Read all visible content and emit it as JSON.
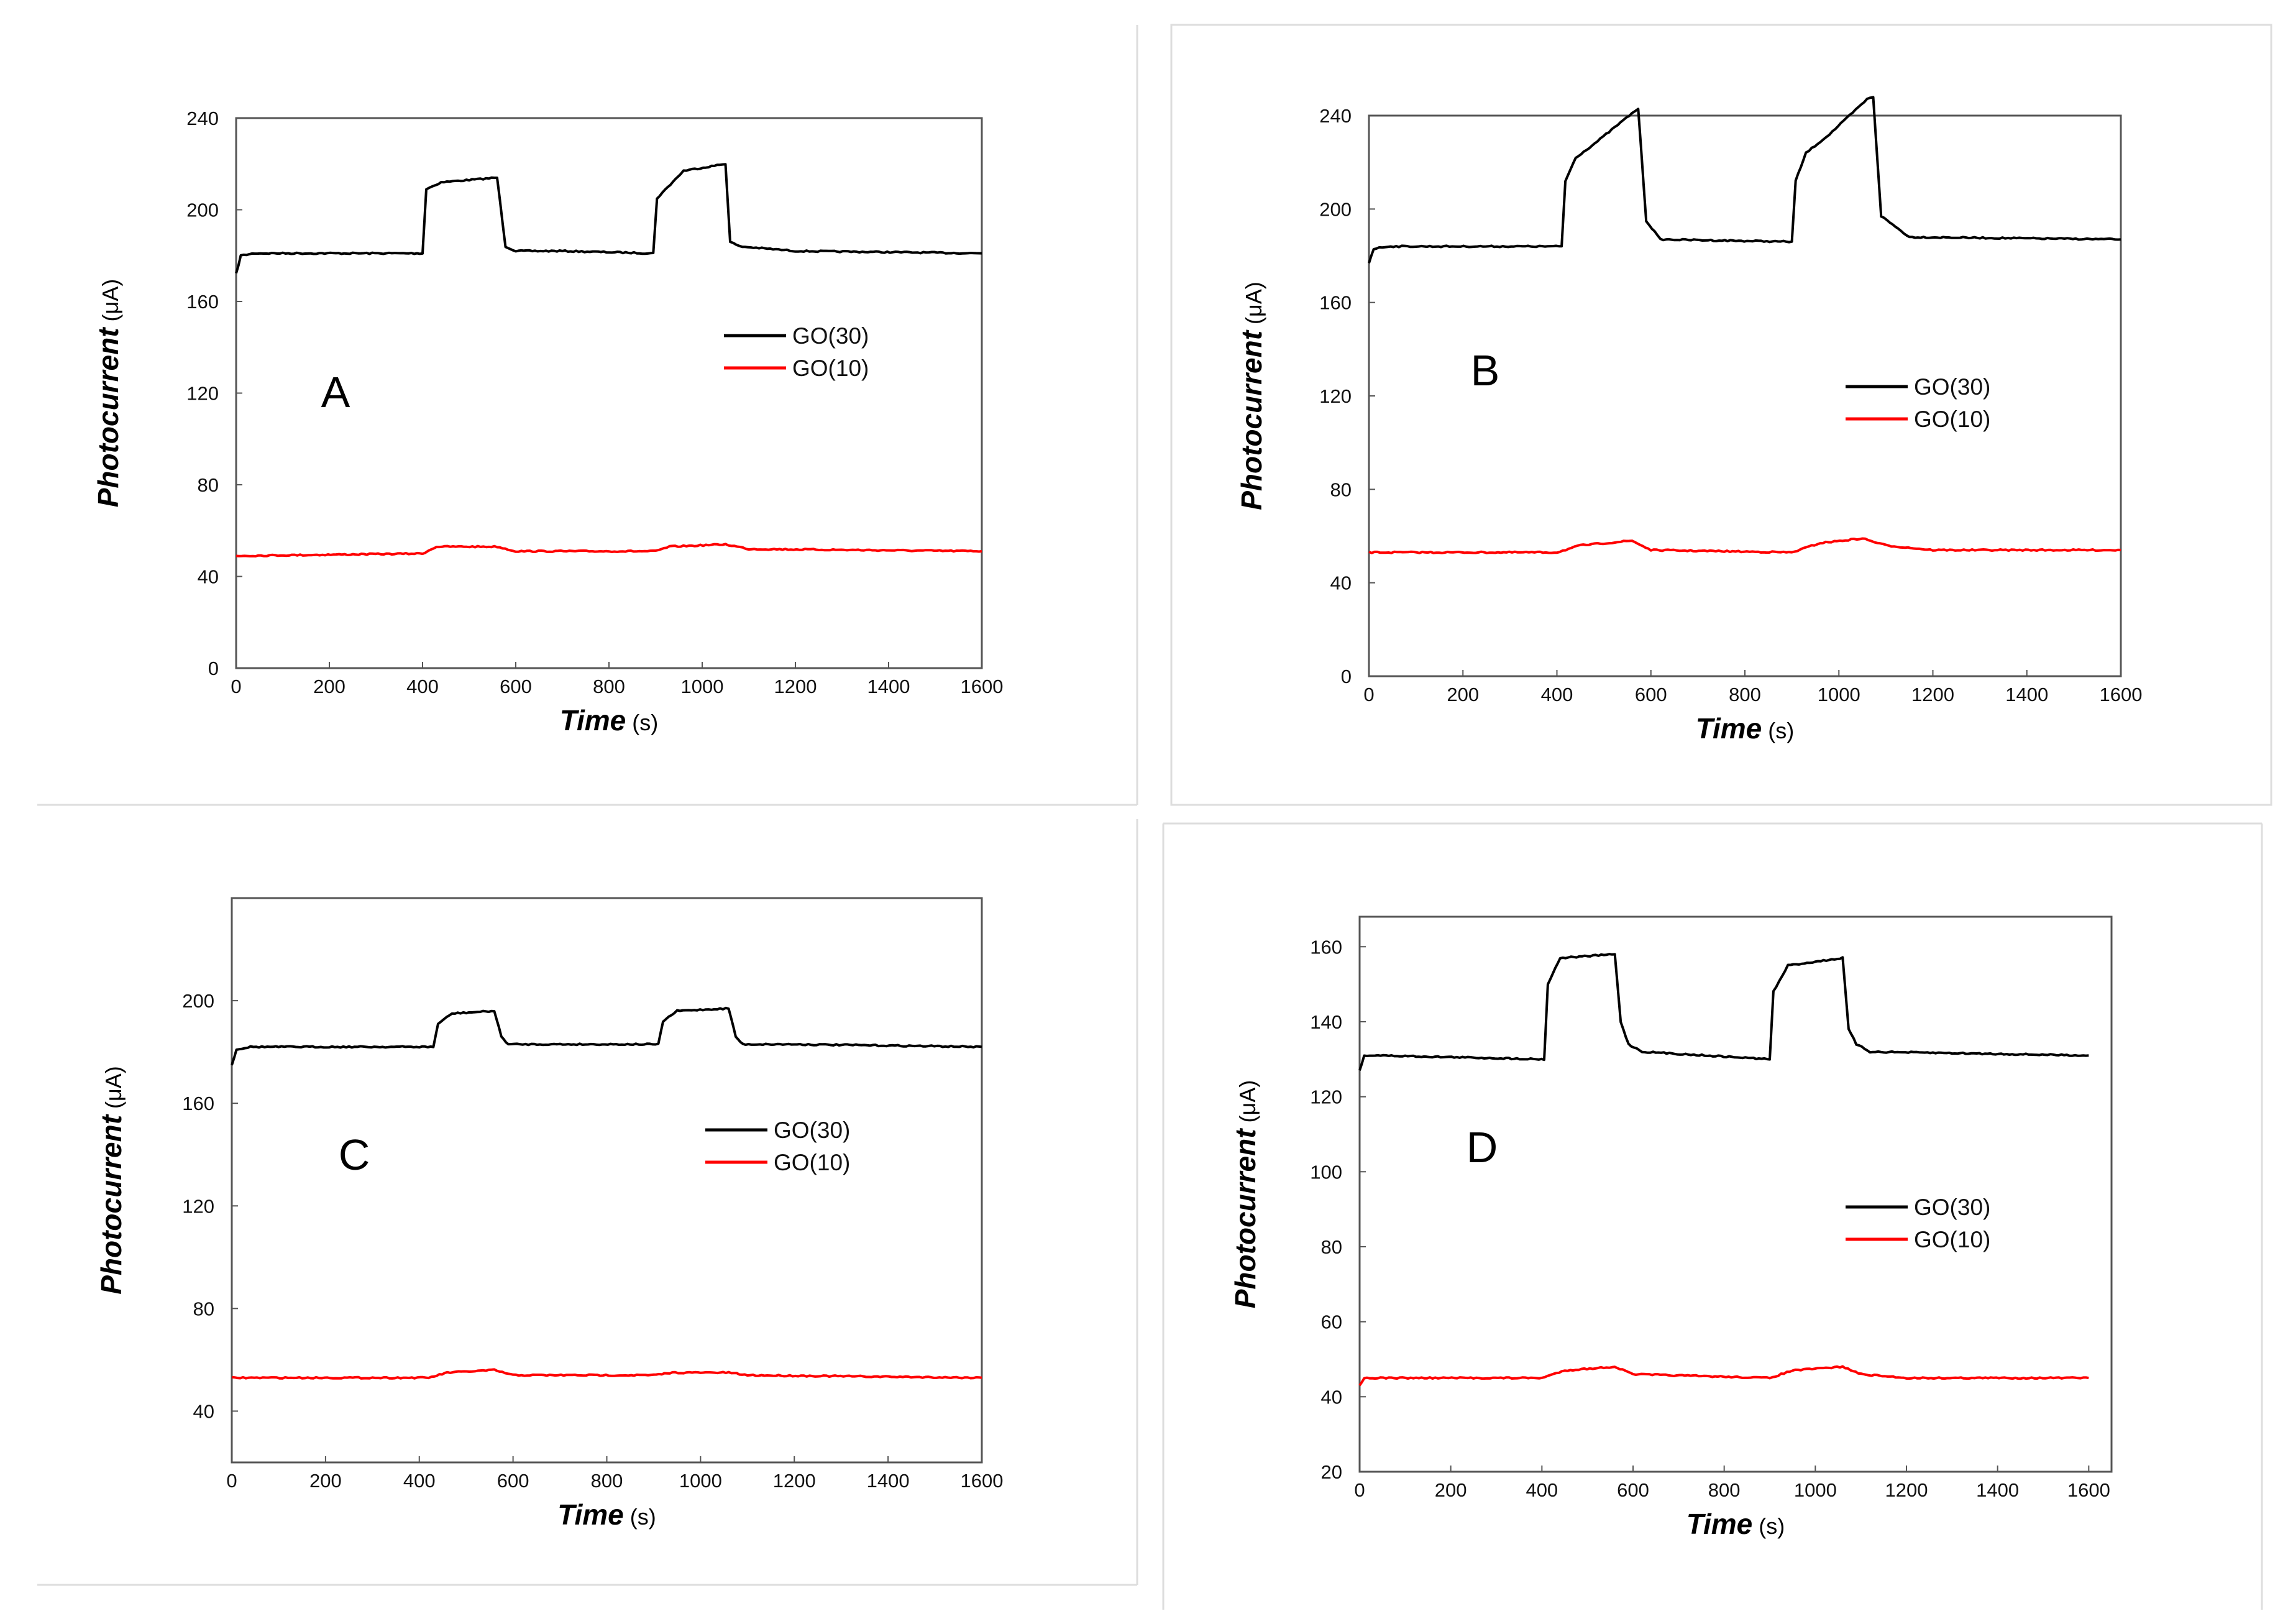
{
  "chart_data": [
    {
      "type": "line",
      "panel_label": "A",
      "xlabel": "Time",
      "xunit": "(s)",
      "ylabel": "Photocurrent",
      "yunit": "(μA)",
      "xlim": [
        0,
        1600
      ],
      "ylim": [
        0,
        240
      ],
      "xticks": [
        0,
        200,
        400,
        600,
        800,
        1000,
        1200,
        1400,
        1600
      ],
      "yticks": [
        0,
        40,
        80,
        120,
        160,
        200,
        240
      ],
      "legend": {
        "position": "middle-right"
      },
      "series": [
        {
          "name": "GO(30)",
          "color": "#000000",
          "x": [
            0,
            10,
            40,
            400,
            408,
            440,
            560,
            578,
            600,
            700,
            895,
            903,
            960,
            1050,
            1060,
            1080,
            1200,
            1600
          ],
          "y": [
            172,
            180,
            181,
            181,
            209,
            212,
            214,
            184,
            182,
            182,
            181,
            205,
            217,
            220,
            186,
            184,
            182,
            181
          ]
        },
        {
          "name": "GO(10)",
          "color": "#ff0000",
          "x": [
            0,
            400,
            430,
            560,
            600,
            800,
            900,
            930,
            1050,
            1100,
            1600
          ],
          "y": [
            49,
            50,
            53,
            53,
            51,
            51,
            51,
            53,
            54,
            52,
            51
          ]
        }
      ]
    },
    {
      "type": "line",
      "panel_label": "B",
      "xlabel": "Time",
      "xunit": "(s)",
      "ylabel": "Photocurrent",
      "yunit": "(μA)",
      "xlim": [
        0,
        1600
      ],
      "ylim": [
        0,
        240
      ],
      "xticks": [
        0,
        200,
        400,
        600,
        800,
        1000,
        1200,
        1400,
        1600
      ],
      "yticks": [
        0,
        40,
        80,
        120,
        160,
        200,
        240
      ],
      "legend": {
        "position": "middle-right"
      },
      "series": [
        {
          "name": "GO(30)",
          "color": "#000000",
          "x": [
            0,
            10,
            40,
            410,
            418,
            440,
            480,
            560,
            573,
            590,
            620,
            900,
            908,
            930,
            980,
            1060,
            1073,
            1090,
            1150,
            1600
          ],
          "y": [
            177,
            183,
            184,
            184,
            212,
            222,
            228,
            241,
            243,
            195,
            187,
            186,
            212,
            224,
            232,
            247,
            248,
            197,
            188,
            187
          ]
        },
        {
          "name": "GO(10)",
          "color": "#ff0000",
          "x": [
            0,
            400,
            450,
            560,
            600,
            900,
            960,
            1050,
            1100,
            1200,
            1600
          ],
          "y": [
            53,
            53,
            56,
            58,
            54,
            53,
            57,
            59,
            56,
            54,
            54
          ]
        }
      ]
    },
    {
      "type": "line",
      "panel_label": "C",
      "xlabel": "Time",
      "xunit": "(s)",
      "ylabel": "Photocurrent",
      "yunit": "(μA)",
      "xlim": [
        0,
        1600
      ],
      "ylim": [
        20,
        240
      ],
      "xticks": [
        0,
        200,
        400,
        600,
        800,
        1000,
        1200,
        1400,
        1600
      ],
      "yticks": [
        40,
        80,
        120,
        160,
        200
      ],
      "legend": {
        "position": "middle-right"
      },
      "series": [
        {
          "name": "GO(30)",
          "color": "#000000",
          "x": [
            0,
            10,
            40,
            430,
            440,
            470,
            560,
            575,
            590,
            700,
            910,
            920,
            950,
            1060,
            1075,
            1090,
            1200,
            1600
          ],
          "y": [
            175,
            181,
            182,
            182,
            191,
            195,
            196,
            186,
            183,
            183,
            183,
            192,
            196,
            197,
            186,
            183,
            183,
            182
          ]
        },
        {
          "name": "GO(10)",
          "color": "#ff0000",
          "x": [
            0,
            420,
            460,
            560,
            600,
            900,
            940,
            1060,
            1100,
            1600
          ],
          "y": [
            53,
            53,
            55,
            56,
            54,
            54,
            55,
            55,
            54,
            53
          ]
        }
      ]
    },
    {
      "type": "line",
      "panel_label": "D",
      "xlabel": "Time",
      "xunit": "(s)",
      "ylabel": "Photocurrent",
      "yunit": "(μA)",
      "xlim": [
        0,
        1650
      ],
      "ylim": [
        20,
        168
      ],
      "xticks": [
        0,
        200,
        400,
        600,
        800,
        1000,
        1200,
        1400,
        1600
      ],
      "yticks": [
        20,
        40,
        60,
        80,
        100,
        120,
        140,
        160
      ],
      "legend": {
        "position": "bottom-right"
      },
      "series": [
        {
          "name": "GO(30)",
          "color": "#000000",
          "x": [
            0,
            10,
            40,
            405,
            413,
            440,
            560,
            573,
            590,
            620,
            900,
            908,
            940,
            1060,
            1073,
            1090,
            1120,
            1600
          ],
          "y": [
            127,
            131,
            131,
            130,
            150,
            157,
            158,
            140,
            134,
            132,
            130,
            148,
            155,
            157,
            138,
            134,
            132,
            131
          ]
        },
        {
          "name": "GO(10)",
          "color": "#ff0000",
          "x": [
            0,
            10,
            400,
            450,
            560,
            600,
            900,
            950,
            1060,
            1100,
            1200,
            1600
          ],
          "y": [
            43,
            45,
            45,
            47,
            48,
            46,
            45,
            47,
            48,
            46,
            45,
            45
          ]
        }
      ]
    }
  ]
}
